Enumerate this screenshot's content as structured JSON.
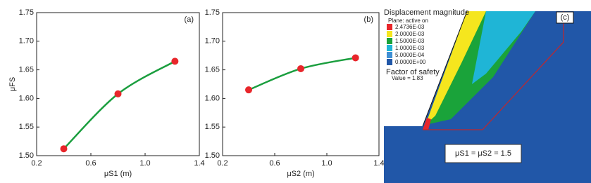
{
  "chart_data": [
    {
      "type": "line",
      "annotation": "(a)",
      "x_label": "μS1 (m)",
      "y_label": "μFS",
      "x": [
        0.4,
        0.8,
        1.22
      ],
      "values": [
        1.512,
        1.608,
        1.665
      ],
      "line_color": "#1a9e3e",
      "marker_color": "#e8262b",
      "xlim": [
        0.2,
        1.4
      ],
      "xticks": [
        0.2,
        0.6,
        {
          "value": 1,
          "label": "1.0"
        },
        1.4
      ],
      "ylim": [
        1.5,
        1.75
      ],
      "yticks": [
        {
          "value": 1.5,
          "label": "1.50"
        },
        1.55,
        {
          "value": 1.6,
          "label": "1.60"
        },
        1.65,
        {
          "value": 1.7,
          "label": "1.70"
        },
        1.75
      ]
    },
    {
      "type": "line",
      "annotation": "(b)",
      "x_label": "μS2 (m)",
      "x": [
        0.4,
        0.8,
        1.22
      ],
      "values": [
        1.615,
        1.652,
        1.671
      ],
      "line_color": "#1a9e3e",
      "marker_color": "#e8262b",
      "xlim": [
        0.2,
        1.4
      ],
      "xticks": [
        0.2,
        0.6,
        {
          "value": 1,
          "label": "1.0"
        },
        1.4
      ],
      "ylim": [
        1.5,
        1.75
      ],
      "yticks": [
        {
          "value": 1.5,
          "label": "1.50"
        },
        1.55,
        {
          "value": 1.6,
          "label": "1.60"
        },
        1.65,
        {
          "value": 1.7,
          "label": "1.70"
        },
        1.75
      ]
    }
  ],
  "panel_c": {
    "label": "(c)",
    "legend_title": "Displacement magnitude",
    "plane": "Plane: active on",
    "legend": [
      {
        "label": "2.4736E-03",
        "color": "#e8262b"
      },
      {
        "label": "2.0000E-03",
        "color": "#f5e61e"
      },
      {
        "label": "1.5000E-03",
        "color": "#1aa33a"
      },
      {
        "label": "1.0000E-03",
        "color": "#1fb5d6"
      },
      {
        "label": "5.0000E-04",
        "color": "#3f8fd4"
      },
      {
        "label": "0.0000E+00",
        "color": "#2157a8"
      }
    ],
    "fos_title": "Factor of safety",
    "fos_value": "Value = 1.83",
    "caption": "μS1 = μS2 = 1.5"
  }
}
